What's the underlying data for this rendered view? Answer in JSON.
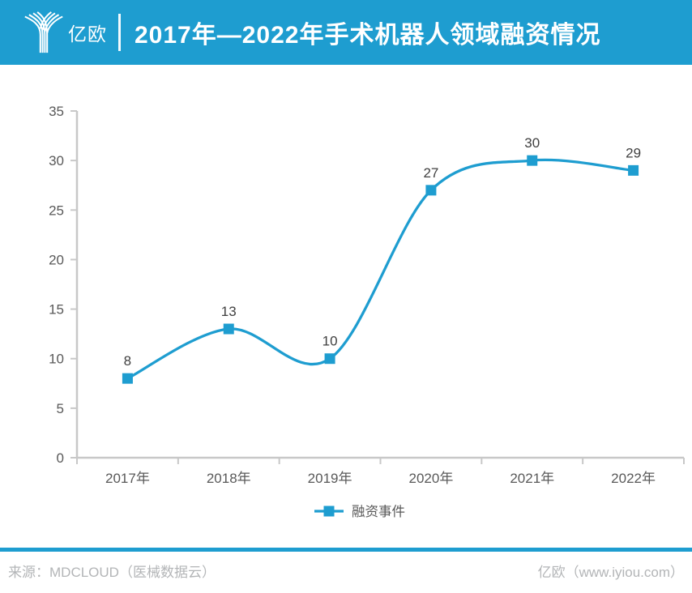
{
  "header": {
    "logo_text": "亿欧",
    "title": "2017年—2022年手术机器人领域融资情况"
  },
  "colors": {
    "accent": "#1E9DD0",
    "line": "#1E9DD0",
    "marker": "#1E9DD0",
    "axis": "#C8C8C8",
    "tick_label": "#595959",
    "data_label": "#404040",
    "legend_label": "#595959",
    "footer_text": "#B3B5B7"
  },
  "chart_data": {
    "type": "line",
    "categories": [
      "2017年",
      "2018年",
      "2019年",
      "2020年",
      "2021年",
      "2022年"
    ],
    "series": [
      {
        "name": "融资事件",
        "values": [
          8,
          13,
          10,
          27,
          30,
          29
        ]
      }
    ],
    "title": "2017年—2022年手术机器人领域融资情况",
    "xlabel": "",
    "ylabel": "",
    "ylim": [
      0,
      35
    ],
    "ytick_interval": 5,
    "grid": false,
    "smooth": true,
    "marker": "square",
    "data_labels": true,
    "legend_position": "bottom"
  },
  "legend": {
    "label": "融资事件"
  },
  "footer": {
    "source": "来源：MDCLOUD（医械数据云）",
    "brand": "亿欧（www.iyiou.com）"
  }
}
